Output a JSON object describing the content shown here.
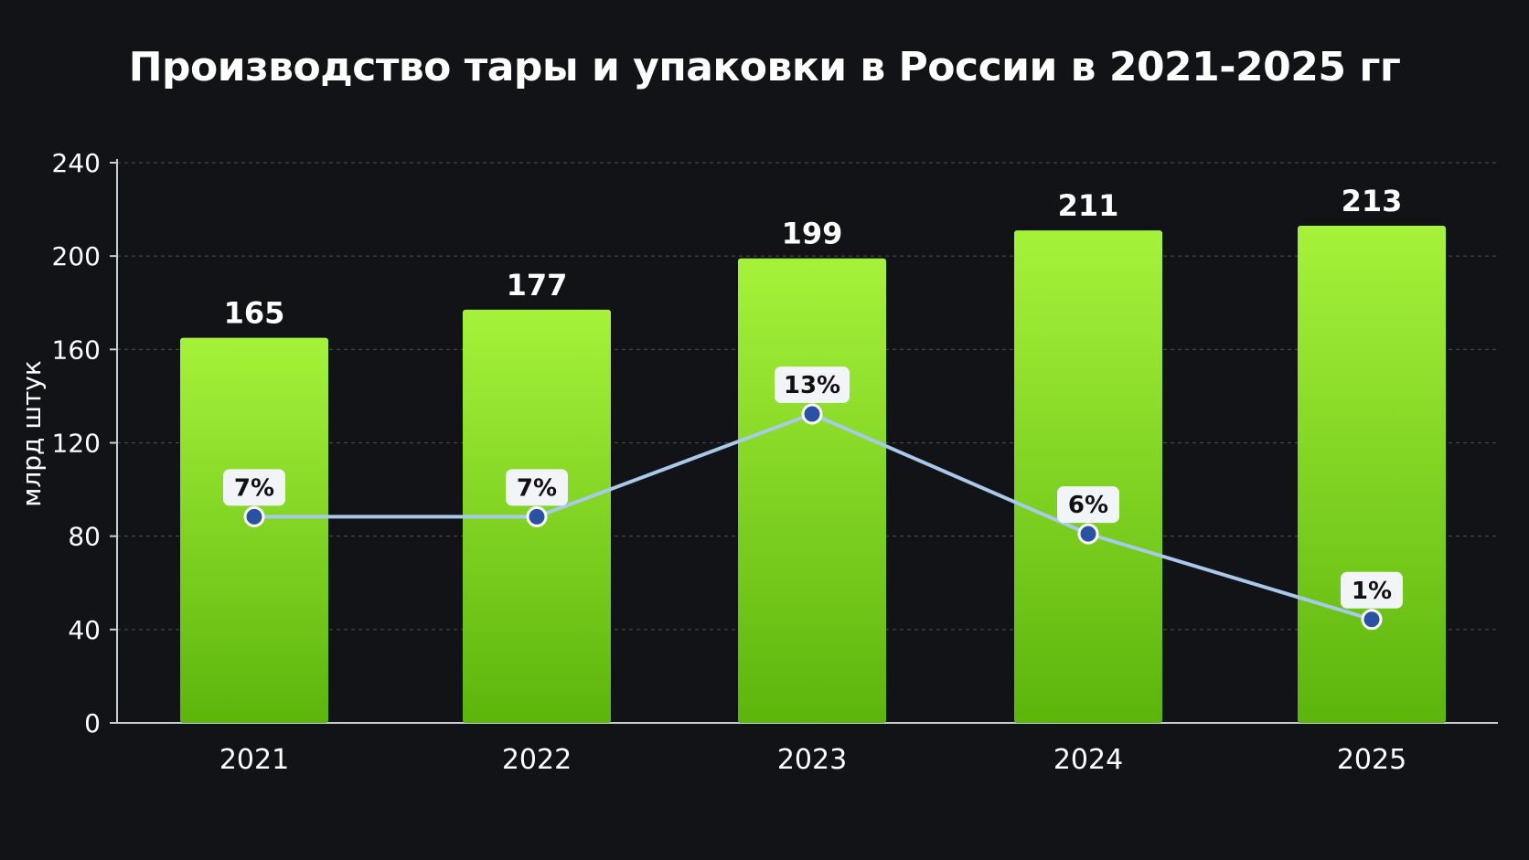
{
  "chart_data": {
    "type": "bar",
    "title": "Производство тары и упаковки в России в 2021-2025 гг",
    "xlabel": "",
    "ylabel": "млрд штук",
    "ylim": [
      0,
      240
    ],
    "yticks": [
      "0",
      "40",
      "80",
      "120",
      "160",
      "200",
      "240"
    ],
    "grid": true,
    "categories": [
      "2021",
      "2022",
      "2023",
      "2024",
      "2025"
    ],
    "series": [
      {
        "type": "bar",
        "values": [
          165,
          177,
          199,
          211,
          213
        ],
        "labels": [
          "165",
          "177",
          "199",
          "211",
          "213"
        ]
      },
      {
        "type": "line",
        "values": [
          7,
          7,
          13,
          6,
          1
        ],
        "labels": [
          "7%",
          "7%",
          "13%",
          "6%",
          "1%"
        ]
      }
    ]
  },
  "colors": {
    "background": "#121316",
    "bar_top": "#a6f23a",
    "bar_bottom": "#5cb50c",
    "line": "#a9c9ea",
    "marker_fill": "#2a52a3",
    "marker_stroke": "#ffffff",
    "label_box": "#f2f5f8",
    "text": "#ffffff",
    "grid": "#4a4d55"
  }
}
